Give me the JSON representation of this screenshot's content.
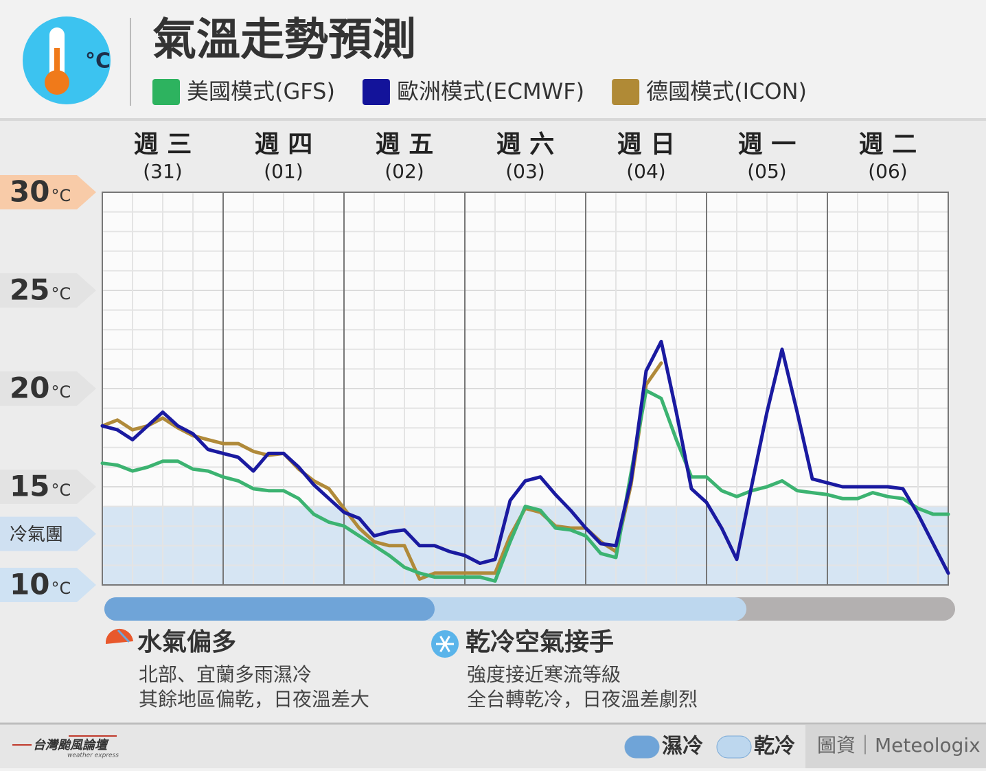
{
  "header": {
    "title": "氣溫走勢預測"
  },
  "chart_data": {
    "type": "line",
    "categories": [
      "週 三",
      "週 四",
      "週 五",
      "週 六",
      "週 日",
      "週 一",
      "週 二"
    ],
    "dates": [
      "(31)",
      "(01)",
      "(02)",
      "(03)",
      "(04)",
      "(05)",
      "(06)"
    ],
    "x": [
      0,
      0.125,
      0.25,
      0.375,
      0.5,
      0.625,
      0.75,
      0.875,
      1,
      1.125,
      1.25,
      1.375,
      1.5,
      1.625,
      1.75,
      1.875,
      2,
      2.125,
      2.25,
      2.375,
      2.5,
      2.625,
      2.75,
      2.875,
      3,
      3.125,
      3.25,
      3.375,
      3.5,
      3.625,
      3.75,
      3.875,
      4,
      4.125,
      4.25,
      4.375,
      4.5,
      4.625,
      4.75,
      4.875,
      5,
      5.125,
      5.25,
      5.375,
      5.5,
      5.625,
      5.75,
      5.875,
      6,
      6.125,
      6.25,
      6.375,
      6.5,
      6.625,
      6.75,
      6.875,
      7
    ],
    "xlim": [
      0,
      7
    ],
    "xticks": [
      0,
      1,
      2,
      3,
      4,
      5,
      6,
      7
    ],
    "minor_xticks": [
      0.25,
      0.5,
      0.75,
      1.25,
      1.5,
      1.75,
      2.25,
      2.5,
      2.75,
      3.25,
      3.5,
      3.75,
      4.25,
      4.5,
      4.75,
      5.25,
      5.5,
      5.75,
      6.25,
      6.5,
      6.75
    ],
    "ylim": [
      10,
      30
    ],
    "yticks": [
      10,
      15,
      20,
      25,
      30
    ],
    "minor_yticks": [
      11,
      12,
      13,
      14,
      16,
      17,
      18,
      19,
      21,
      22,
      23,
      24,
      26,
      27,
      28,
      29
    ],
    "y_unit": "°C",
    "ytick_badge_colors": [
      "#cfe2f3",
      "#e3e3e3",
      "#e3e3e3",
      "#e3e3e3",
      "#f8cba8"
    ],
    "cold_zone": {
      "label": "冷氣團",
      "range": [
        10,
        14
      ],
      "color": "#cfe0f1"
    },
    "series": [
      {
        "name": "美國模式(GFS)",
        "color": "#2db35f",
        "line_color": "#3cb371",
        "values": [
          16.2,
          16.1,
          15.8,
          16.0,
          16.3,
          16.3,
          15.9,
          15.8,
          15.5,
          15.3,
          14.9,
          14.8,
          14.8,
          14.4,
          13.6,
          13.2,
          13.0,
          12.5,
          12.0,
          11.5,
          10.9,
          10.6,
          10.4,
          10.4,
          10.4,
          10.4,
          10.2,
          12.2,
          14.0,
          13.8,
          12.9,
          12.8,
          12.5,
          11.6,
          11.4,
          15.7,
          19.9,
          19.5,
          17.4,
          15.5,
          15.5,
          14.8,
          14.5,
          14.8,
          15.0,
          15.3,
          14.8,
          14.7,
          14.6,
          14.4,
          14.4,
          14.7,
          14.5,
          14.4,
          13.9,
          13.6,
          13.6
        ]
      },
      {
        "name": "歐洲模式(ECMWF)",
        "color": "#13139a",
        "line_color": "#1a1aa0",
        "values": [
          18.1,
          17.9,
          17.4,
          18.1,
          18.8,
          18.1,
          17.7,
          16.9,
          16.7,
          16.5,
          15.8,
          16.7,
          16.7,
          16.0,
          15.1,
          14.4,
          13.7,
          13.4,
          12.5,
          12.7,
          12.8,
          12.0,
          12.0,
          11.7,
          11.5,
          11.1,
          11.3,
          14.3,
          15.3,
          15.5,
          14.6,
          13.8,
          12.9,
          12.1,
          12.0,
          15.3,
          20.9,
          22.4,
          18.8,
          14.9,
          14.2,
          12.9,
          11.3,
          15.1,
          18.8,
          22.0,
          18.8,
          15.4,
          15.2,
          15.0,
          15.0,
          15.0,
          15.0,
          14.9,
          13.6,
          12.1,
          10.6
        ]
      },
      {
        "name": "德國模式(ICON)",
        "color": "#b08a36",
        "line_color": "#b08a3a",
        "values": [
          18.1,
          18.4,
          17.9,
          18.1,
          18.5,
          18.0,
          17.6,
          17.4,
          17.2,
          17.2,
          16.8,
          16.6,
          16.7,
          15.9,
          15.3,
          14.9,
          13.9,
          12.9,
          12.2,
          12.0,
          12.0,
          10.3,
          10.6,
          10.6,
          10.6,
          10.6,
          10.6,
          12.5,
          13.9,
          13.7,
          13.0,
          12.9,
          12.9,
          12.2,
          11.7,
          15.1,
          20.2,
          21.3,
          null,
          null,
          null,
          null,
          null,
          null,
          null,
          null,
          null,
          null,
          null,
          null,
          null,
          null,
          null,
          null,
          null,
          null,
          null
        ]
      }
    ],
    "periods": [
      {
        "name": "濕冷",
        "color": "#6fa4d8",
        "end": 2.75
      },
      {
        "name": "乾冷",
        "color": "#bdd7ee",
        "end": 5.33
      }
    ],
    "rest_color": "#b3b0b0"
  },
  "notes": [
    {
      "title": "水氣偏多",
      "lines": [
        "北部、宜蘭多雨濕冷",
        "其餘地區偏乾，日夜溫差大"
      ]
    },
    {
      "title": "乾冷空氣接手",
      "lines": [
        "強度接近寒流等級",
        "全台轉乾冷，日夜溫差劇烈"
      ]
    }
  ],
  "footer": {
    "logo": "台灣颱風論壇",
    "logo_sub": "weather express",
    "source": "圖資｜Meteologix"
  }
}
